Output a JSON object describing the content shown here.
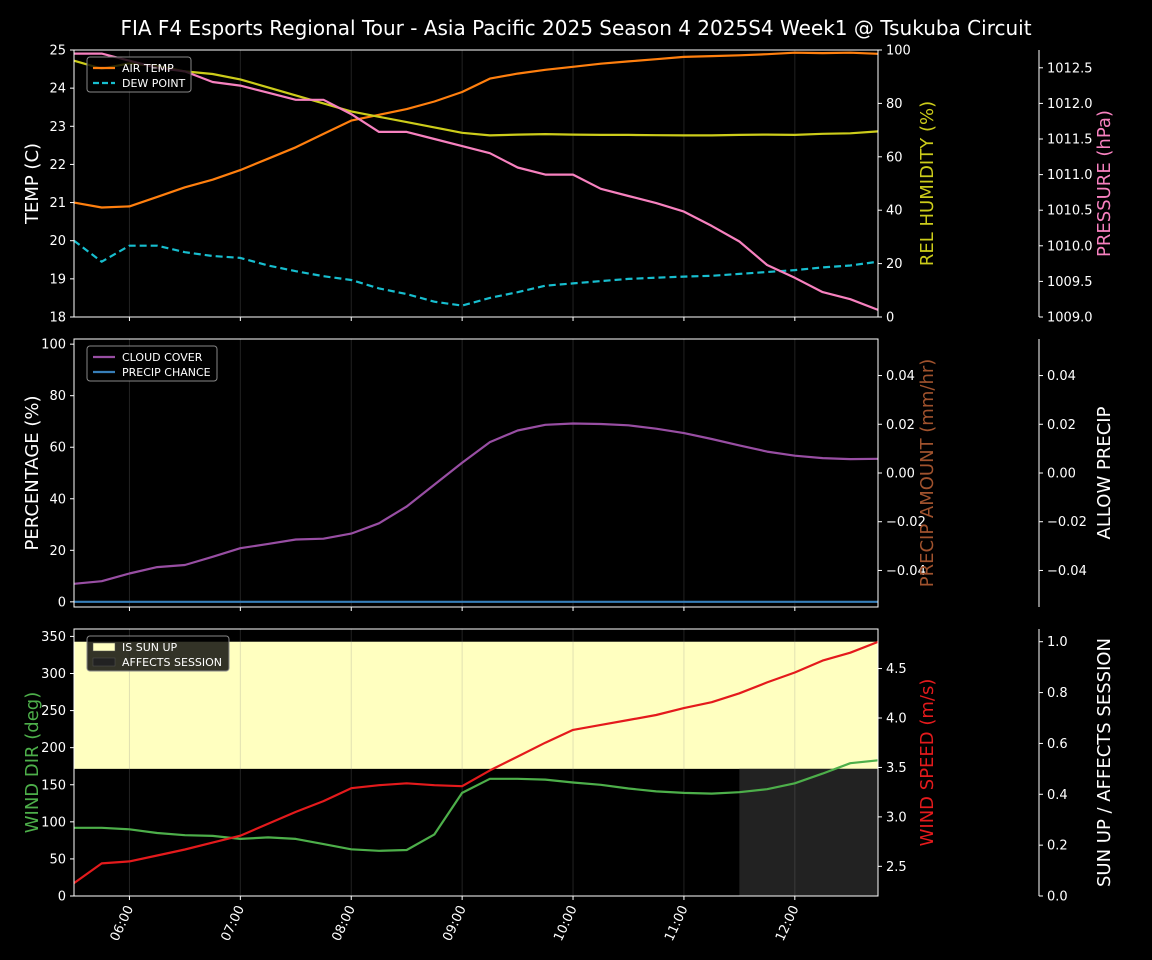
{
  "title": "FIA F4 Esports Regional Tour - Asia Pacific 2025 Season 4 2025S4 Week1 @ Tsukuba Circuit",
  "colors": {
    "background": "#000000",
    "axis": "#ffffff",
    "air_temp": "#ff7f0e",
    "dew_point": "#17becf",
    "humidity": "#cccc1a",
    "pressure": "#f781bf",
    "cloud": "#984ea3",
    "precip_chance": "#377eb8",
    "precip_amount": "#a0522d",
    "wind_dir": "#4daf4a",
    "wind_speed": "#e41a1c",
    "sun_up": "#ffffc0",
    "affects_session": "#222222",
    "time_grid": "#303030"
  },
  "x_ticks": [
    "06:00",
    "07:00",
    "08:00",
    "09:00",
    "10:00",
    "11:00",
    "12:00"
  ],
  "chart_data": [
    {
      "type": "line",
      "x_hours": [
        5.5,
        5.75,
        6.0,
        6.25,
        6.5,
        6.75,
        7.0,
        7.25,
        7.5,
        7.75,
        8.0,
        8.25,
        8.5,
        8.75,
        9.0,
        9.25,
        9.5,
        9.75,
        10.0,
        10.25,
        10.5,
        10.75,
        11.0,
        11.25,
        11.5,
        11.75,
        12.0,
        12.25,
        12.5,
        12.75
      ],
      "xlim": [
        5.5,
        12.75
      ],
      "legend": [
        "AIR TEMP",
        "DEW POINT"
      ],
      "ylabel_left": "TEMP (C)",
      "ylim_left": [
        18,
        25
      ],
      "yticks_left": [
        18,
        19,
        20,
        21,
        22,
        23,
        24,
        25
      ],
      "ylabel_right1": "REL HUMIDITY (%)",
      "ylim_right1": [
        0,
        100
      ],
      "yticks_right1": [
        0,
        20,
        40,
        60,
        80,
        100
      ],
      "ylabel_right2": "PRESSURE (hPa)",
      "ylim_right2": [
        1009.0,
        1012.75
      ],
      "yticks_right2": [
        "1009.0",
        "1009.5",
        "1010.0",
        "1010.5",
        "1011.0",
        "1011.5",
        "1012.0",
        "1012.5"
      ],
      "series": [
        {
          "name": "AIR TEMP",
          "axis": "left",
          "color_key": "air_temp",
          "dash": false,
          "values": [
            21.0,
            20.87,
            20.9,
            21.15,
            21.4,
            21.6,
            21.85,
            22.15,
            22.45,
            22.8,
            23.15,
            23.3,
            23.45,
            23.65,
            23.9,
            24.25,
            24.38,
            24.48,
            24.56,
            24.64,
            24.7,
            24.76,
            24.82,
            24.84,
            24.86,
            24.89,
            24.93,
            24.92,
            24.93,
            24.9
          ]
        },
        {
          "name": "DEW POINT",
          "axis": "left",
          "color_key": "dew_point",
          "dash": true,
          "values": [
            20.0,
            19.45,
            19.87,
            19.87,
            19.7,
            19.6,
            19.55,
            19.35,
            19.2,
            19.07,
            18.97,
            18.75,
            18.6,
            18.4,
            18.3,
            18.5,
            18.65,
            18.82,
            18.88,
            18.94,
            19.0,
            19.03,
            19.06,
            19.08,
            19.13,
            19.18,
            19.23,
            19.3,
            19.35,
            19.45
          ]
        },
        {
          "axis": "right1",
          "color_key": "humidity",
          "dash": false,
          "values": [
            96,
            93,
            95,
            94,
            92,
            91,
            89,
            86,
            83,
            80,
            77,
            75,
            73,
            71,
            69,
            68,
            68.3,
            68.5,
            68.3,
            68.2,
            68.2,
            68.1,
            68,
            68,
            68.2,
            68.3,
            68.2,
            68.6,
            68.8,
            69.5
          ]
        },
        {
          "axis": "right2",
          "color_key": "pressure",
          "dash": false,
          "values": [
            1012.7,
            1012.7,
            1012.6,
            1012.5,
            1012.45,
            1012.3,
            1012.25,
            1012.15,
            1012.05,
            1012.05,
            1011.85,
            1011.6,
            1011.6,
            1011.5,
            1011.4,
            1011.3,
            1011.1,
            1011.0,
            1011.0,
            1010.8,
            1010.7,
            1010.6,
            1010.48,
            1010.28,
            1010.06,
            1009.73,
            1009.55,
            1009.35,
            1009.25,
            1009.1
          ]
        }
      ]
    },
    {
      "type": "line",
      "x_hours": [
        5.5,
        5.75,
        6.0,
        6.25,
        6.5,
        6.75,
        7.0,
        7.25,
        7.5,
        7.75,
        8.0,
        8.25,
        8.5,
        8.75,
        9.0,
        9.25,
        9.5,
        9.75,
        10.0,
        10.25,
        10.5,
        10.75,
        11.0,
        11.25,
        11.5,
        11.75,
        12.0,
        12.25,
        12.5,
        12.75
      ],
      "xlim": [
        5.5,
        12.75
      ],
      "legend": [
        "CLOUD COVER",
        "PRECIP CHANCE"
      ],
      "ylabel_left": "PERCENTAGE (%)",
      "ylim_left": [
        -2,
        102
      ],
      "yticks_left": [
        0,
        20,
        40,
        60,
        80,
        100
      ],
      "ylabel_right1": "PRECIP AMOUNT (mm/hr)",
      "ylim_right1": [
        -0.055,
        0.055
      ],
      "yticks_right1": [
        "−0.04",
        "−0.02",
        "0.00",
        "0.02",
        "0.04"
      ],
      "ylabel_right2": "ALLOW PRECIP",
      "ylim_right2": [
        -0.055,
        0.055
      ],
      "yticks_right2": [
        "−0.04",
        "−0.02",
        "0.00",
        "0.02",
        "0.04"
      ],
      "series": [
        {
          "name": "CLOUD COVER",
          "axis": "left",
          "color_key": "cloud",
          "dash": false,
          "values": [
            7,
            8,
            11,
            13.5,
            14.3,
            17.5,
            20.8,
            22.5,
            24.2,
            24.5,
            26.5,
            30.5,
            37,
            45.5,
            54,
            62,
            66.5,
            68.7,
            69.2,
            69,
            68.5,
            67.2,
            65.5,
            63.2,
            60.7,
            58.3,
            56.7,
            55.8,
            55.4,
            55.5
          ]
        },
        {
          "name": "PRECIP CHANCE",
          "axis": "left",
          "color_key": "precip_chance",
          "dash": false,
          "values": [
            0,
            0,
            0,
            0,
            0,
            0,
            0,
            0,
            0,
            0,
            0,
            0,
            0,
            0,
            0,
            0,
            0,
            0,
            0,
            0,
            0,
            0,
            0,
            0,
            0,
            0,
            0,
            0,
            0,
            0
          ]
        }
      ]
    },
    {
      "type": "line",
      "x_hours": [
        5.5,
        5.75,
        6.0,
        6.25,
        6.5,
        6.75,
        7.0,
        7.25,
        7.5,
        7.75,
        8.0,
        8.25,
        8.5,
        8.75,
        9.0,
        9.25,
        9.5,
        9.75,
        10.0,
        10.25,
        10.5,
        10.75,
        11.0,
        11.25,
        11.5,
        11.75,
        12.0,
        12.25,
        12.5,
        12.75
      ],
      "xlim": [
        5.5,
        12.75
      ],
      "legend": [
        "IS SUN UP",
        "AFFECTS SESSION"
      ],
      "ylabel_left": "WIND DIR (deg)",
      "ylim_left": [
        0,
        360
      ],
      "yticks_left": [
        0,
        50,
        100,
        150,
        200,
        250,
        300,
        350
      ],
      "ylabel_right1": "WIND SPEED (m/s)",
      "ylim_right1": [
        2.2,
        4.9
      ],
      "yticks_right1": [
        "2.5",
        "3.0",
        "3.5",
        "4.0",
        "4.5"
      ],
      "ylabel_right2": "SUN UP / AFFECTS SESSION",
      "ylim_right2": [
        0,
        1.05
      ],
      "yticks_right2": [
        "0.0",
        "0.2",
        "0.4",
        "0.6",
        "0.8",
        "1.0"
      ],
      "sun_up_value": 1.0,
      "affects_session_from_hours": 11.5,
      "series": [
        {
          "name": "WIND DIR",
          "axis": "left",
          "color_key": "wind_dir",
          "dash": false,
          "values": [
            92,
            92,
            90,
            85,
            82,
            81,
            77,
            79,
            77,
            70,
            63,
            61,
            62,
            83,
            139,
            158,
            158,
            157,
            153,
            150,
            145,
            141,
            139,
            138,
            140,
            144,
            152,
            165,
            179,
            183
          ]
        },
        {
          "name": "WIND SPEED",
          "axis": "right1",
          "color_key": "wind_speed",
          "dash": false,
          "values": [
            2.33,
            2.53,
            2.55,
            2.61,
            2.67,
            2.74,
            2.81,
            2.93,
            3.05,
            3.16,
            3.29,
            3.32,
            3.34,
            3.32,
            3.31,
            3.47,
            3.61,
            3.75,
            3.88,
            3.93,
            3.98,
            4.03,
            4.1,
            4.16,
            4.25,
            4.36,
            4.46,
            4.58,
            4.66,
            4.77
          ]
        }
      ]
    }
  ]
}
